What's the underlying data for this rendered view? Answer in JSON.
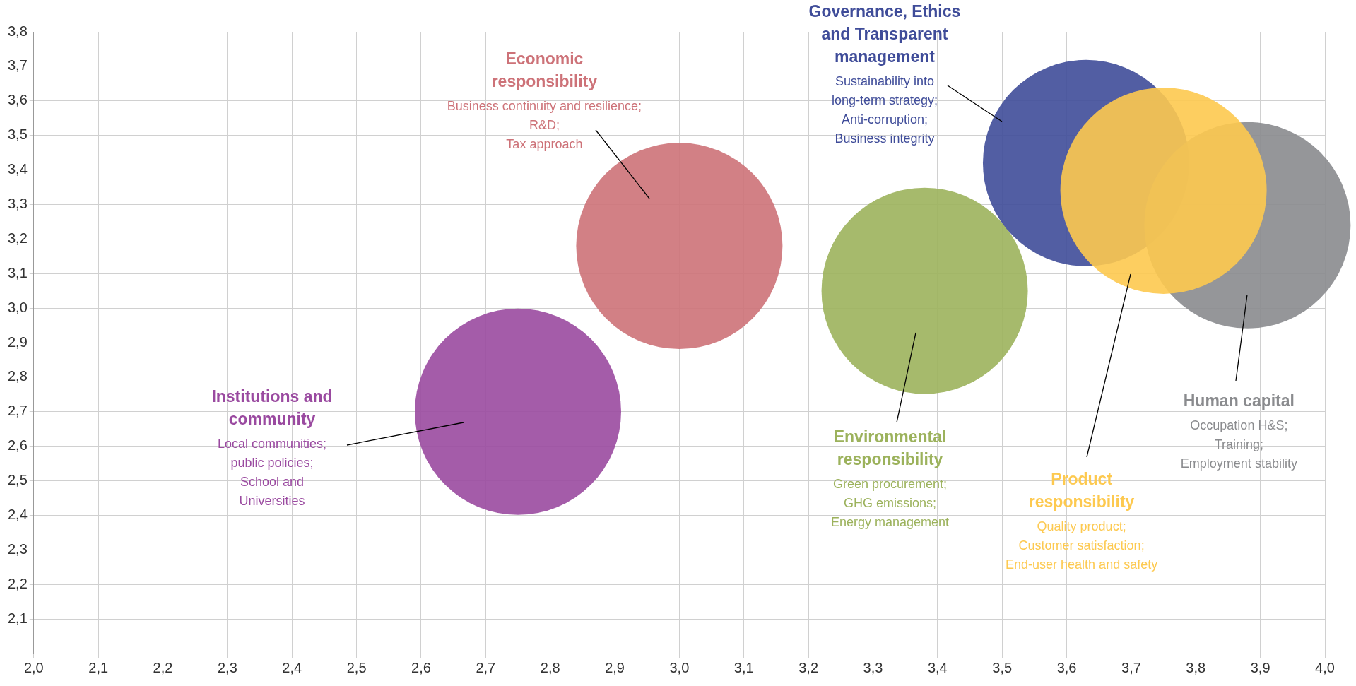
{
  "chart_data": {
    "type": "bubble",
    "xlim": [
      2.0,
      4.0
    ],
    "ylim": [
      2.0,
      3.8
    ],
    "xticks": [
      {
        "value": 2.0,
        "label": "2,0"
      },
      {
        "value": 2.1,
        "label": "2,1"
      },
      {
        "value": 2.2,
        "label": "2,2"
      },
      {
        "value": 2.3,
        "label": "2,3"
      },
      {
        "value": 2.4,
        "label": "2,4"
      },
      {
        "value": 2.5,
        "label": "2,5"
      },
      {
        "value": 2.6,
        "label": "2,6"
      },
      {
        "value": 2.7,
        "label": "2,7"
      },
      {
        "value": 2.8,
        "label": "2,8"
      },
      {
        "value": 2.9,
        "label": "2,9"
      },
      {
        "value": 3.0,
        "label": "3,0"
      },
      {
        "value": 3.1,
        "label": "3,1"
      },
      {
        "value": 3.2,
        "label": "3,2"
      },
      {
        "value": 3.3,
        "label": "3,3"
      },
      {
        "value": 3.4,
        "label": "3,4"
      },
      {
        "value": 3.5,
        "label": "3,5"
      },
      {
        "value": 3.6,
        "label": "3,6"
      },
      {
        "value": 3.7,
        "label": "3,7"
      },
      {
        "value": 3.8,
        "label": "3,8"
      },
      {
        "value": 3.9,
        "label": "3,9"
      },
      {
        "value": 4.0,
        "label": "4,0"
      }
    ],
    "yticks": [
      {
        "value": 2.1,
        "label": "2,1"
      },
      {
        "value": 2.2,
        "label": "2,2"
      },
      {
        "value": 2.3,
        "label": "2,3"
      },
      {
        "value": 2.4,
        "label": "2,4"
      },
      {
        "value": 2.5,
        "label": "2,5"
      },
      {
        "value": 2.6,
        "label": "2,6"
      },
      {
        "value": 2.7,
        "label": "2,7"
      },
      {
        "value": 2.8,
        "label": "2,8"
      },
      {
        "value": 2.9,
        "label": "2,9"
      },
      {
        "value": 3.0,
        "label": "3,0"
      },
      {
        "value": 3.1,
        "label": "3,1"
      },
      {
        "value": 3.2,
        "label": "3,2"
      },
      {
        "value": 3.3,
        "label": "3,3"
      },
      {
        "value": 3.4,
        "label": "3,4"
      },
      {
        "value": 3.5,
        "label": "3,5"
      },
      {
        "value": 3.6,
        "label": "3,6"
      },
      {
        "value": 3.7,
        "label": "3,7"
      },
      {
        "value": 3.8,
        "label": "3,8"
      }
    ],
    "grid": true,
    "legend": false,
    "series": [
      {
        "name": "Institutions and community",
        "color": "#9a4aa0",
        "x": [
          2.75
        ],
        "values": [
          2.7
        ],
        "sizes": [
          1
        ]
      },
      {
        "name": "Economic responsibility",
        "color": "#cd7278",
        "x": [
          3.0
        ],
        "values": [
          3.18
        ],
        "sizes": [
          1
        ]
      },
      {
        "name": "Environmental responsibility",
        "color": "#9cb25c",
        "x": [
          3.38
        ],
        "values": [
          3.05
        ],
        "sizes": [
          1
        ]
      },
      {
        "name": "Governance, Ethics and Transparent management",
        "color": "#3f4c99",
        "x": [
          3.63
        ],
        "values": [
          3.42
        ],
        "sizes": [
          1
        ]
      },
      {
        "name": "Human capital",
        "color": "#8a8b8e",
        "x": [
          3.88
        ],
        "values": [
          3.24
        ],
        "sizes": [
          1
        ]
      },
      {
        "name": "Product responsibility",
        "color": "#fdc94f",
        "x": [
          3.75
        ],
        "values": [
          3.34
        ],
        "sizes": [
          1
        ]
      }
    ],
    "annotations": [
      "Local communities; public policies; School and Universities",
      "Business continuity and resilience; R&D; Tax approach",
      "Green procurement; GHG emissions; Energy management",
      "Sustainability into long-term strategy; Anti-corruption; Business integrity",
      "Occupation H&S; Training; Employment stability",
      "Quality product; Customer satisfaction; End-user health and safety"
    ]
  }
}
